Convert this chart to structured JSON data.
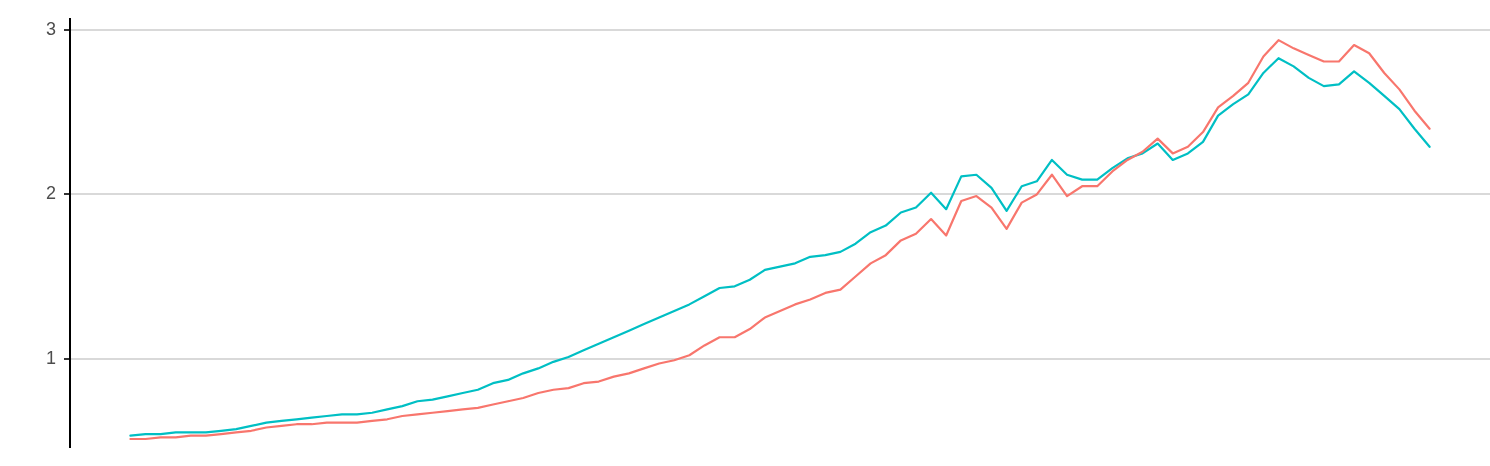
{
  "chart_data": {
    "type": "line",
    "categories": [
      null,
      null,
      null,
      null,
      null,
      null,
      null,
      null,
      null,
      null,
      null,
      null,
      null,
      null,
      null,
      null,
      null,
      null,
      null,
      null,
      null,
      null,
      null,
      null,
      null,
      null,
      null,
      null,
      null,
      null,
      null,
      null,
      null,
      null,
      null,
      null,
      null,
      null,
      null,
      null,
      null,
      null,
      null,
      null,
      null,
      null,
      null,
      null,
      null,
      null,
      null,
      null,
      null,
      null,
      null,
      null,
      null,
      null,
      null,
      null,
      null,
      null,
      null,
      null,
      null,
      null,
      null,
      null,
      null,
      null,
      null,
      null,
      null,
      null,
      null,
      null,
      null,
      null,
      null,
      null,
      null,
      null,
      null,
      null,
      null,
      null,
      null
    ],
    "series": [
      {
        "color": "#f8766d",
        "values": [
          0.51,
          0.51,
          0.52,
          0.52,
          0.53,
          0.53,
          0.54,
          0.55,
          0.56,
          0.58,
          0.59,
          0.6,
          0.6,
          0.61,
          0.61,
          0.61,
          0.62,
          0.63,
          0.65,
          0.66,
          0.67,
          0.68,
          0.69,
          0.7,
          0.72,
          0.74,
          0.76,
          0.79,
          0.81,
          0.82,
          0.85,
          0.86,
          0.89,
          0.91,
          0.94,
          0.97,
          0.99,
          1.02,
          1.08,
          1.13,
          1.13,
          1.18,
          1.25,
          1.29,
          1.33,
          1.36,
          1.4,
          1.42,
          1.5,
          1.58,
          1.63,
          1.72,
          1.76,
          1.85,
          1.75,
          1.96,
          1.99,
          1.92,
          1.79,
          1.95,
          2.0,
          2.12,
          1.99,
          2.05,
          2.05,
          2.14,
          2.21,
          2.26,
          2.34,
          2.25,
          2.29,
          2.38,
          2.53,
          2.6,
          2.68,
          2.84,
          2.94,
          2.89,
          2.85,
          2.81,
          2.81,
          2.91,
          2.86,
          2.74,
          2.64,
          2.51,
          2.4
        ]
      },
      {
        "color": "#00bfc4",
        "values": [
          0.53,
          0.54,
          0.54,
          0.55,
          0.55,
          0.55,
          0.56,
          0.57,
          0.59,
          0.61,
          0.62,
          0.63,
          0.64,
          0.65,
          0.66,
          0.66,
          0.67,
          0.69,
          0.71,
          0.74,
          0.75,
          0.77,
          0.79,
          0.81,
          0.85,
          0.87,
          0.91,
          0.94,
          0.98,
          1.01,
          1.05,
          1.09,
          1.13,
          1.17,
          1.21,
          1.25,
          1.29,
          1.33,
          1.38,
          1.43,
          1.44,
          1.48,
          1.54,
          1.56,
          1.58,
          1.62,
          1.63,
          1.65,
          1.7,
          1.77,
          1.81,
          1.89,
          1.92,
          2.01,
          1.91,
          2.11,
          2.12,
          2.04,
          1.9,
          2.05,
          2.08,
          2.21,
          2.12,
          2.09,
          2.09,
          2.16,
          2.22,
          2.25,
          2.31,
          2.21,
          2.25,
          2.32,
          2.48,
          2.55,
          2.61,
          2.74,
          2.83,
          2.78,
          2.71,
          2.66,
          2.67,
          2.75,
          2.68,
          2.6,
          2.52,
          2.4,
          2.29
        ]
      }
    ],
    "ylim": [
      0.46,
      3.07
    ],
    "yticks": [
      1,
      2,
      3
    ],
    "grid": "y",
    "tick_labels": "y",
    "legend": false,
    "marker": "none",
    "line_style": "solid"
  }
}
